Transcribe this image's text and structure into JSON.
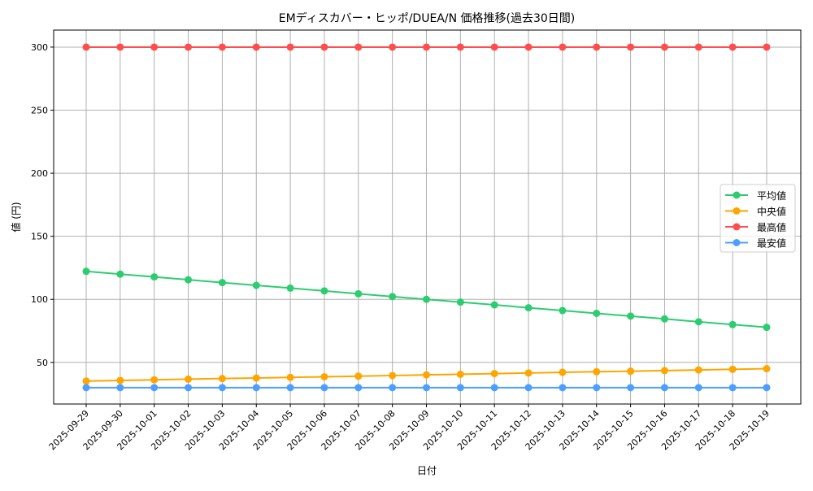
{
  "chart_data": {
    "type": "line",
    "title": "EMディスカバー・ヒッポ/DUEA/N 価格推移(過去30日間)",
    "xlabel": "日付",
    "ylabel": "値 (円)",
    "ylim": [
      17,
      313.5
    ],
    "yticks": [
      50,
      100,
      150,
      200,
      250,
      300
    ],
    "grid": true,
    "legend_position": "center-right",
    "categories": [
      "2025-09-29",
      "2025-09-30",
      "2025-10-01",
      "2025-10-02",
      "2025-10-03",
      "2025-10-04",
      "2025-10-05",
      "2025-10-06",
      "2025-10-07",
      "2025-10-08",
      "2025-10-09",
      "2025-10-10",
      "2025-10-11",
      "2025-10-12",
      "2025-10-13",
      "2025-10-14",
      "2025-10-15",
      "2025-10-16",
      "2025-10-17",
      "2025-10-18",
      "2025-10-19"
    ],
    "series": [
      {
        "name": "平均値",
        "color": "#2ecc71",
        "values": [
          122.2,
          120.0,
          117.8,
          115.5,
          113.3,
          111.1,
          108.9,
          106.7,
          104.4,
          102.2,
          100.0,
          97.8,
          95.6,
          93.3,
          91.1,
          88.9,
          86.7,
          84.5,
          82.2,
          80.0,
          77.8
        ]
      },
      {
        "name": "中央値",
        "color": "#ffa500",
        "values": [
          35.2,
          35.7,
          36.2,
          36.7,
          37.2,
          37.6,
          38.1,
          38.6,
          39.1,
          39.6,
          40.1,
          40.6,
          41.1,
          41.6,
          42.1,
          42.6,
          43.0,
          43.5,
          44.0,
          44.5,
          45.0
        ]
      },
      {
        "name": "最高値",
        "color": "#ff4d4d",
        "values": [
          300,
          300,
          300,
          300,
          300,
          300,
          300,
          300,
          300,
          300,
          300,
          300,
          300,
          300,
          300,
          300,
          300,
          300,
          300,
          300,
          300
        ]
      },
      {
        "name": "最安値",
        "color": "#4d9fff",
        "values": [
          30,
          30,
          30,
          30,
          30,
          30,
          30,
          30,
          30,
          30,
          30,
          30,
          30,
          30,
          30,
          30,
          30,
          30,
          30,
          30,
          30
        ]
      }
    ]
  }
}
